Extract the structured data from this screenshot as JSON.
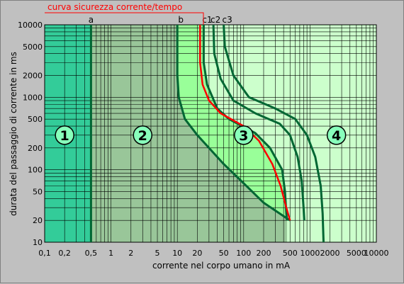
{
  "chart_data": {
    "type": "line",
    "title": "curva sicurezza corrente/tempo",
    "xlabel": "corrente nel corpo umano in mA",
    "ylabel": "durata del passaggio di corrente in ms",
    "x_scale": "log",
    "y_scale": "log",
    "xlim": [
      0.1,
      10000
    ],
    "ylim": [
      10,
      10000
    ],
    "x_ticks": [
      {
        "value": 0.1,
        "label": "0,1"
      },
      {
        "value": 0.2,
        "label": "0,2"
      },
      {
        "value": 0.5,
        "label": "0,5"
      },
      {
        "value": 1,
        "label": "1"
      },
      {
        "value": 2,
        "label": "2"
      },
      {
        "value": 5,
        "label": "5"
      },
      {
        "value": 10,
        "label": "10"
      },
      {
        "value": 20,
        "label": "20"
      },
      {
        "value": 50,
        "label": "50"
      },
      {
        "value": 100,
        "label": "100"
      },
      {
        "value": 200,
        "label": "200"
      },
      {
        "value": 500,
        "label": "500"
      },
      {
        "value": 1000,
        "label": "1000"
      },
      {
        "value": 2000,
        "label": "2000"
      },
      {
        "value": 5000,
        "label": "5000"
      },
      {
        "value": 10000,
        "label": "10000"
      }
    ],
    "y_ticks": [
      {
        "value": 10000,
        "label": "10000"
      },
      {
        "value": 5000,
        "label": "5000"
      },
      {
        "value": 2000,
        "label": "2000"
      },
      {
        "value": 1000,
        "label": "1000"
      },
      {
        "value": 500,
        "label": "500"
      },
      {
        "value": 200,
        "label": "200"
      },
      {
        "value": 100,
        "label": "100"
      },
      {
        "value": 50,
        "label": "50"
      },
      {
        "value": 20,
        "label": "20"
      },
      {
        "value": 10,
        "label": "10"
      }
    ],
    "grid": true,
    "zones": [
      {
        "label": "1",
        "x_from": 0.1,
        "x_to": 0.5,
        "color": "#33cc99",
        "label_at": [
          0.2,
          300
        ]
      },
      {
        "label": "2",
        "x_from": 0.5,
        "x_to": "b",
        "color": "#99c699",
        "label_at": [
          3,
          300
        ]
      },
      {
        "label": "3",
        "x_from": "b",
        "x_to": "c1",
        "color": "#99ff99",
        "label_at": [
          100,
          300
        ]
      },
      {
        "label": "4",
        "x_from": "c1",
        "x_to": 10000,
        "color": "#ccffcc",
        "label_at": [
          2500,
          300
        ]
      }
    ],
    "series": [
      {
        "name": "a",
        "color": "#006633",
        "points": [
          [
            0.5,
            10
          ],
          [
            0.5,
            10000
          ]
        ]
      },
      {
        "name": "b",
        "color": "#006633",
        "points": [
          [
            10,
            10000
          ],
          [
            10,
            2000
          ],
          [
            10.5,
            1000
          ],
          [
            13,
            500
          ],
          [
            20,
            300
          ],
          [
            50,
            120
          ],
          [
            100,
            65
          ],
          [
            200,
            35
          ],
          [
            500,
            20
          ]
        ]
      },
      {
        "name": "c1",
        "color": "#006633",
        "points": [
          [
            25,
            10000
          ],
          [
            25,
            3000
          ],
          [
            28,
            1500
          ],
          [
            40,
            700
          ],
          [
            60,
            500
          ],
          [
            150,
            320
          ],
          [
            250,
            200
          ],
          [
            380,
            100
          ],
          [
            420,
            50
          ],
          [
            440,
            25
          ],
          [
            450,
            20
          ]
        ]
      },
      {
        "name": "c2",
        "color": "#006633",
        "points": [
          [
            35,
            10000
          ],
          [
            36,
            4000
          ],
          [
            45,
            1800
          ],
          [
            70,
            900
          ],
          [
            150,
            600
          ],
          [
            350,
            430
          ],
          [
            500,
            300
          ],
          [
            650,
            150
          ],
          [
            750,
            70
          ],
          [
            800,
            30
          ],
          [
            820,
            20
          ]
        ]
      },
      {
        "name": "c3",
        "color": "#006633",
        "points": [
          [
            50,
            10000
          ],
          [
            52,
            5000
          ],
          [
            70,
            2000
          ],
          [
            120,
            1000
          ],
          [
            300,
            700
          ],
          [
            600,
            500
          ],
          [
            900,
            300
          ],
          [
            1200,
            150
          ],
          [
            1450,
            60
          ],
          [
            1550,
            25
          ],
          [
            1600,
            10
          ]
        ]
      },
      {
        "name": "curva sicurezza corrente/tempo",
        "color": "#ff0000",
        "points": [
          [
            22,
            10000
          ],
          [
            22,
            3000
          ],
          [
            24,
            1500
          ],
          [
            30,
            900
          ],
          [
            45,
            600
          ],
          [
            100,
            400
          ],
          [
            170,
            250
          ],
          [
            270,
            120
          ],
          [
            360,
            60
          ],
          [
            440,
            30
          ],
          [
            500,
            20
          ]
        ]
      }
    ]
  }
}
